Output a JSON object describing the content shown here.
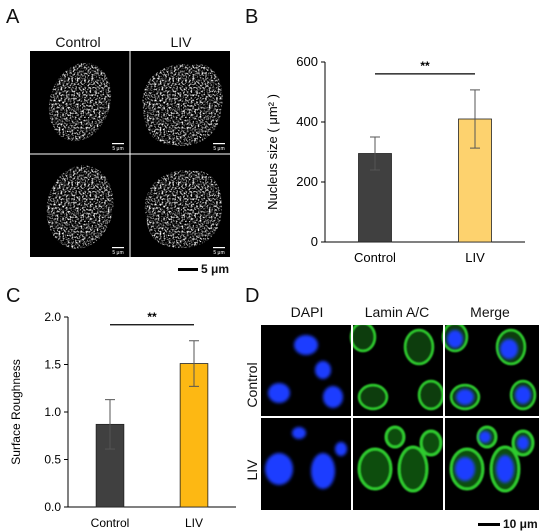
{
  "panels": {
    "a": {
      "letter": "A",
      "col_labels": [
        "Control",
        "LIV"
      ],
      "inset_scale": "5 μm",
      "scale_label": "5 μm"
    },
    "b": {
      "letter": "B"
    },
    "c": {
      "letter": "C"
    },
    "d": {
      "letter": "D",
      "col_labels": [
        "DAPI",
        "Lamin A/C",
        "Merge"
      ],
      "row_labels": [
        "Control",
        "LIV"
      ],
      "scale_label": "10 μm"
    }
  },
  "colors": {
    "control_bar": "#404040",
    "liv_bar_b": "#FDD26E",
    "liv_bar_c": "#FDB813",
    "dapi": "#1E3CFF",
    "lamin": "#2FCB2F"
  },
  "chart_data": [
    {
      "type": "bar",
      "panel": "B",
      "categories": [
        "Control",
        "LIV"
      ],
      "values": [
        295,
        410
      ],
      "errors": [
        55,
        97
      ],
      "ylabel": "Nucleus size ( μm² )",
      "xlabel": "",
      "ylim": [
        0,
        600
      ],
      "yticks": [
        0,
        200,
        400,
        600
      ],
      "tick_labels": [
        "0",
        "200",
        "400",
        "600"
      ],
      "significance": "**"
    },
    {
      "type": "bar",
      "panel": "C",
      "categories": [
        "Control",
        "LIV"
      ],
      "values": [
        0.87,
        1.51
      ],
      "errors": [
        0.26,
        0.24
      ],
      "ylabel": "Surface Roughness",
      "xlabel": "",
      "ylim": [
        0,
        2.0
      ],
      "yticks": [
        0,
        0.5,
        1.0,
        1.5,
        2.0
      ],
      "tick_labels": [
        "0.0",
        "0.5",
        "1.0",
        "1.5",
        "2.0"
      ],
      "significance": "**"
    }
  ]
}
